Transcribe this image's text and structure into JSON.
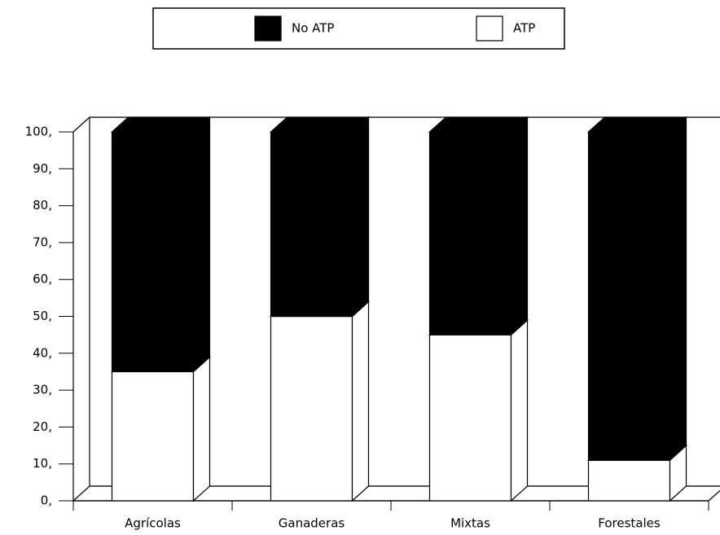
{
  "chart_data": {
    "type": "bar3d_stacked",
    "categories": [
      "Agrícolas",
      "Ganaderas",
      "Mixtas",
      "Forestales"
    ],
    "series": [
      {
        "name": "ATP",
        "color": "#ffffff",
        "values": [
          35,
          50,
          45,
          11
        ]
      },
      {
        "name": "No ATP",
        "color": "#000000",
        "values": [
          65,
          50,
          55,
          89
        ]
      }
    ],
    "ylim": [
      0,
      100
    ],
    "yticks": [
      {
        "value": 0,
        "label": "0,"
      },
      {
        "value": 10,
        "label": "10,"
      },
      {
        "value": 20,
        "label": "20,"
      },
      {
        "value": 30,
        "label": "30,"
      },
      {
        "value": 40,
        "label": "40,"
      },
      {
        "value": 50,
        "label": "50,"
      },
      {
        "value": 60,
        "label": "60,"
      },
      {
        "value": 70,
        "label": "70,"
      },
      {
        "value": 80,
        "label": "80,"
      },
      {
        "value": 90,
        "label": "90,"
      },
      {
        "value": 100,
        "label": "100,"
      }
    ]
  }
}
